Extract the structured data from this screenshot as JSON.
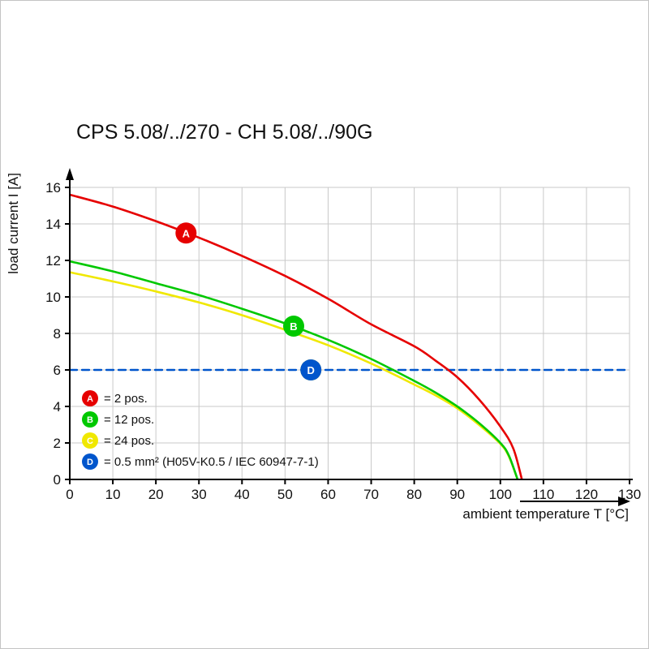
{
  "chart_data": {
    "type": "line",
    "title": "CPS 5.08/../270 - CH 5.08/../90G",
    "xlabel": "ambient temperature T [°C]",
    "ylabel": "load current I [A]",
    "xlim": [
      0,
      130
    ],
    "ylim": [
      0,
      16
    ],
    "xticks": [
      0,
      10,
      20,
      30,
      40,
      50,
      60,
      70,
      80,
      90,
      100,
      110,
      120,
      130
    ],
    "yticks": [
      0,
      2,
      4,
      6,
      8,
      10,
      12,
      14,
      16
    ],
    "grid": true,
    "legend_position": "inside-bottom-left",
    "colors": {
      "grid": "#c9c9c9",
      "axis": "#000000",
      "background": "#ffffff"
    },
    "series": [
      {
        "name": "A",
        "legend": "= 2 pos.",
        "color": "#e60000",
        "dashed": false,
        "points": [
          [
            0,
            15.6
          ],
          [
            10,
            14.95
          ],
          [
            20,
            14.15
          ],
          [
            30,
            13.25
          ],
          [
            40,
            12.25
          ],
          [
            50,
            11.15
          ],
          [
            60,
            9.9
          ],
          [
            70,
            8.5
          ],
          [
            80,
            7.3
          ],
          [
            85,
            6.5
          ],
          [
            90,
            5.6
          ],
          [
            95,
            4.4
          ],
          [
            100,
            2.9
          ],
          [
            103,
            1.7
          ],
          [
            105,
            0
          ]
        ],
        "marker": {
          "x": 27,
          "y": 13.5
        }
      },
      {
        "name": "B",
        "legend": "= 12 pos.",
        "color": "#00c800",
        "dashed": false,
        "points": [
          [
            0,
            11.95
          ],
          [
            10,
            11.4
          ],
          [
            20,
            10.75
          ],
          [
            30,
            10.1
          ],
          [
            40,
            9.35
          ],
          [
            50,
            8.55
          ],
          [
            60,
            7.65
          ],
          [
            70,
            6.6
          ],
          [
            80,
            5.4
          ],
          [
            85,
            4.75
          ],
          [
            90,
            4.0
          ],
          [
            95,
            3.1
          ],
          [
            100,
            2.0
          ],
          [
            102,
            1.3
          ],
          [
            104,
            0
          ]
        ],
        "marker": {
          "x": 52,
          "y": 8.4
        }
      },
      {
        "name": "C",
        "legend": "= 24 pos.",
        "color": "#f0e800",
        "dashed": false,
        "points": [
          [
            0,
            11.35
          ],
          [
            10,
            10.85
          ],
          [
            20,
            10.3
          ],
          [
            30,
            9.7
          ],
          [
            40,
            9.0
          ],
          [
            50,
            8.2
          ],
          [
            60,
            7.35
          ],
          [
            70,
            6.35
          ],
          [
            80,
            5.2
          ],
          [
            85,
            4.6
          ],
          [
            90,
            3.9
          ],
          [
            95,
            3.0
          ],
          [
            100,
            1.95
          ],
          [
            102,
            1.25
          ],
          [
            104,
            0
          ]
        ],
        "marker": {
          "x": 56,
          "y": 6,
          "on": false
        }
      },
      {
        "name": "D",
        "legend": "= 0.5 mm² (H05V-K0.5 / IEC 60947-7-1)",
        "color": "#0055cc",
        "dashed": true,
        "points": [
          [
            0,
            6
          ],
          [
            130,
            6
          ]
        ],
        "marker": {
          "x": 56,
          "y": 6
        }
      }
    ]
  }
}
